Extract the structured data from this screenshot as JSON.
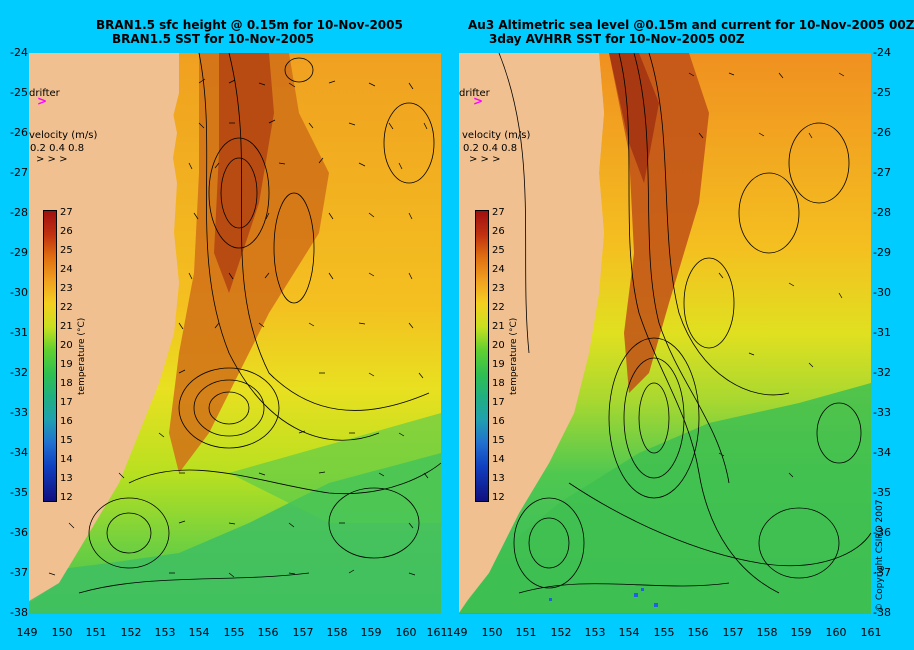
{
  "left_panel": {
    "title_line1": "BRAN1.5 sfc height @ 0.15m for 10-Nov-2005",
    "title_line2": "BRAN1.5 SST for 10-Nov-2005",
    "drifter_label": "drifter",
    "velocity_label": "velocity (m/s)",
    "velocity_scale": "0.2 0.4 0.8"
  },
  "right_panel": {
    "title_line1": "Au3 Altimetric sea level  @0.15m and current for 10-Nov-2005 00Z",
    "title_line2": "3day AVHRR SST for 10-Nov-2005 00Z",
    "drifter_label": "drifter",
    "velocity_label": "velocity (m/s)",
    "velocity_scale": "0.2 0.4 0.8"
  },
  "latitudes": [
    "-24",
    "-25",
    "-26",
    "-27",
    "-28",
    "-29",
    "-30",
    "-31",
    "-32",
    "-33",
    "-34",
    "-35",
    "-36",
    "-37",
    "-38"
  ],
  "longitudes_left": [
    "149",
    "150",
    "151",
    "152",
    "153",
    "154",
    "155",
    "156",
    "157",
    "158",
    "159",
    "160",
    "161"
  ],
  "longitudes_right": [
    "149",
    "150",
    "151",
    "152",
    "153",
    "154",
    "155",
    "156",
    "157",
    "158",
    "159",
    "160",
    "161"
  ],
  "colorbar": {
    "title": "temperature (°C)",
    "ticks": [
      "27",
      "26",
      "25",
      "24",
      "23",
      "22",
      "21",
      "20",
      "19",
      "18",
      "17",
      "16",
      "15",
      "14",
      "13",
      "12"
    ]
  },
  "copyright": "© Copyright CSIRO 2007",
  "colors": {
    "background": "#00ccff",
    "land": "#f0c090",
    "drifter": "#ff00ff"
  }
}
